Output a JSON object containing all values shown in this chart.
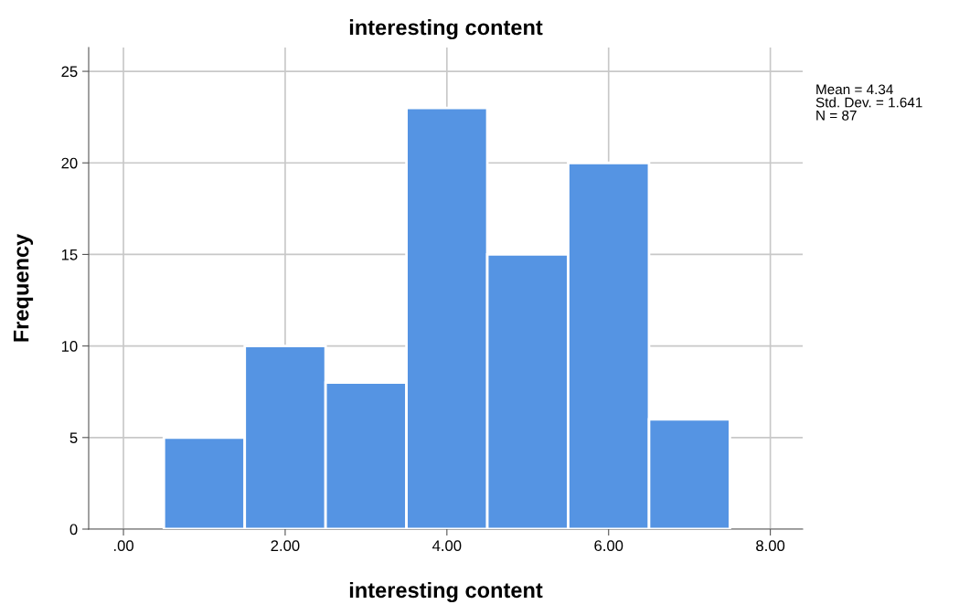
{
  "chart_data": {
    "type": "histogram",
    "title": "interesting content",
    "xlabel": "interesting content",
    "ylabel": "Frequency",
    "bins": [
      0.5,
      1.5,
      2.5,
      3.5,
      4.5,
      5.5,
      6.5,
      7.5
    ],
    "values": [
      5,
      10,
      8,
      23,
      15,
      20,
      6
    ],
    "color": "#5594e3",
    "xlim": [
      -0.43,
      8.4
    ],
    "xticks": [
      {
        "value": 0,
        "label": ".00"
      },
      {
        "value": 2,
        "label": "2.00"
      },
      {
        "value": 4,
        "label": "4.00"
      },
      {
        "value": 6,
        "label": "6.00"
      },
      {
        "value": 8,
        "label": "8.00"
      }
    ],
    "ylim": [
      0,
      26.3
    ],
    "yticks": [
      0,
      5,
      10,
      15,
      20,
      25
    ],
    "grid": true,
    "annotations": [
      "Mean = 4.34",
      "Std. Dev. = 1.641",
      "N = 87"
    ]
  }
}
